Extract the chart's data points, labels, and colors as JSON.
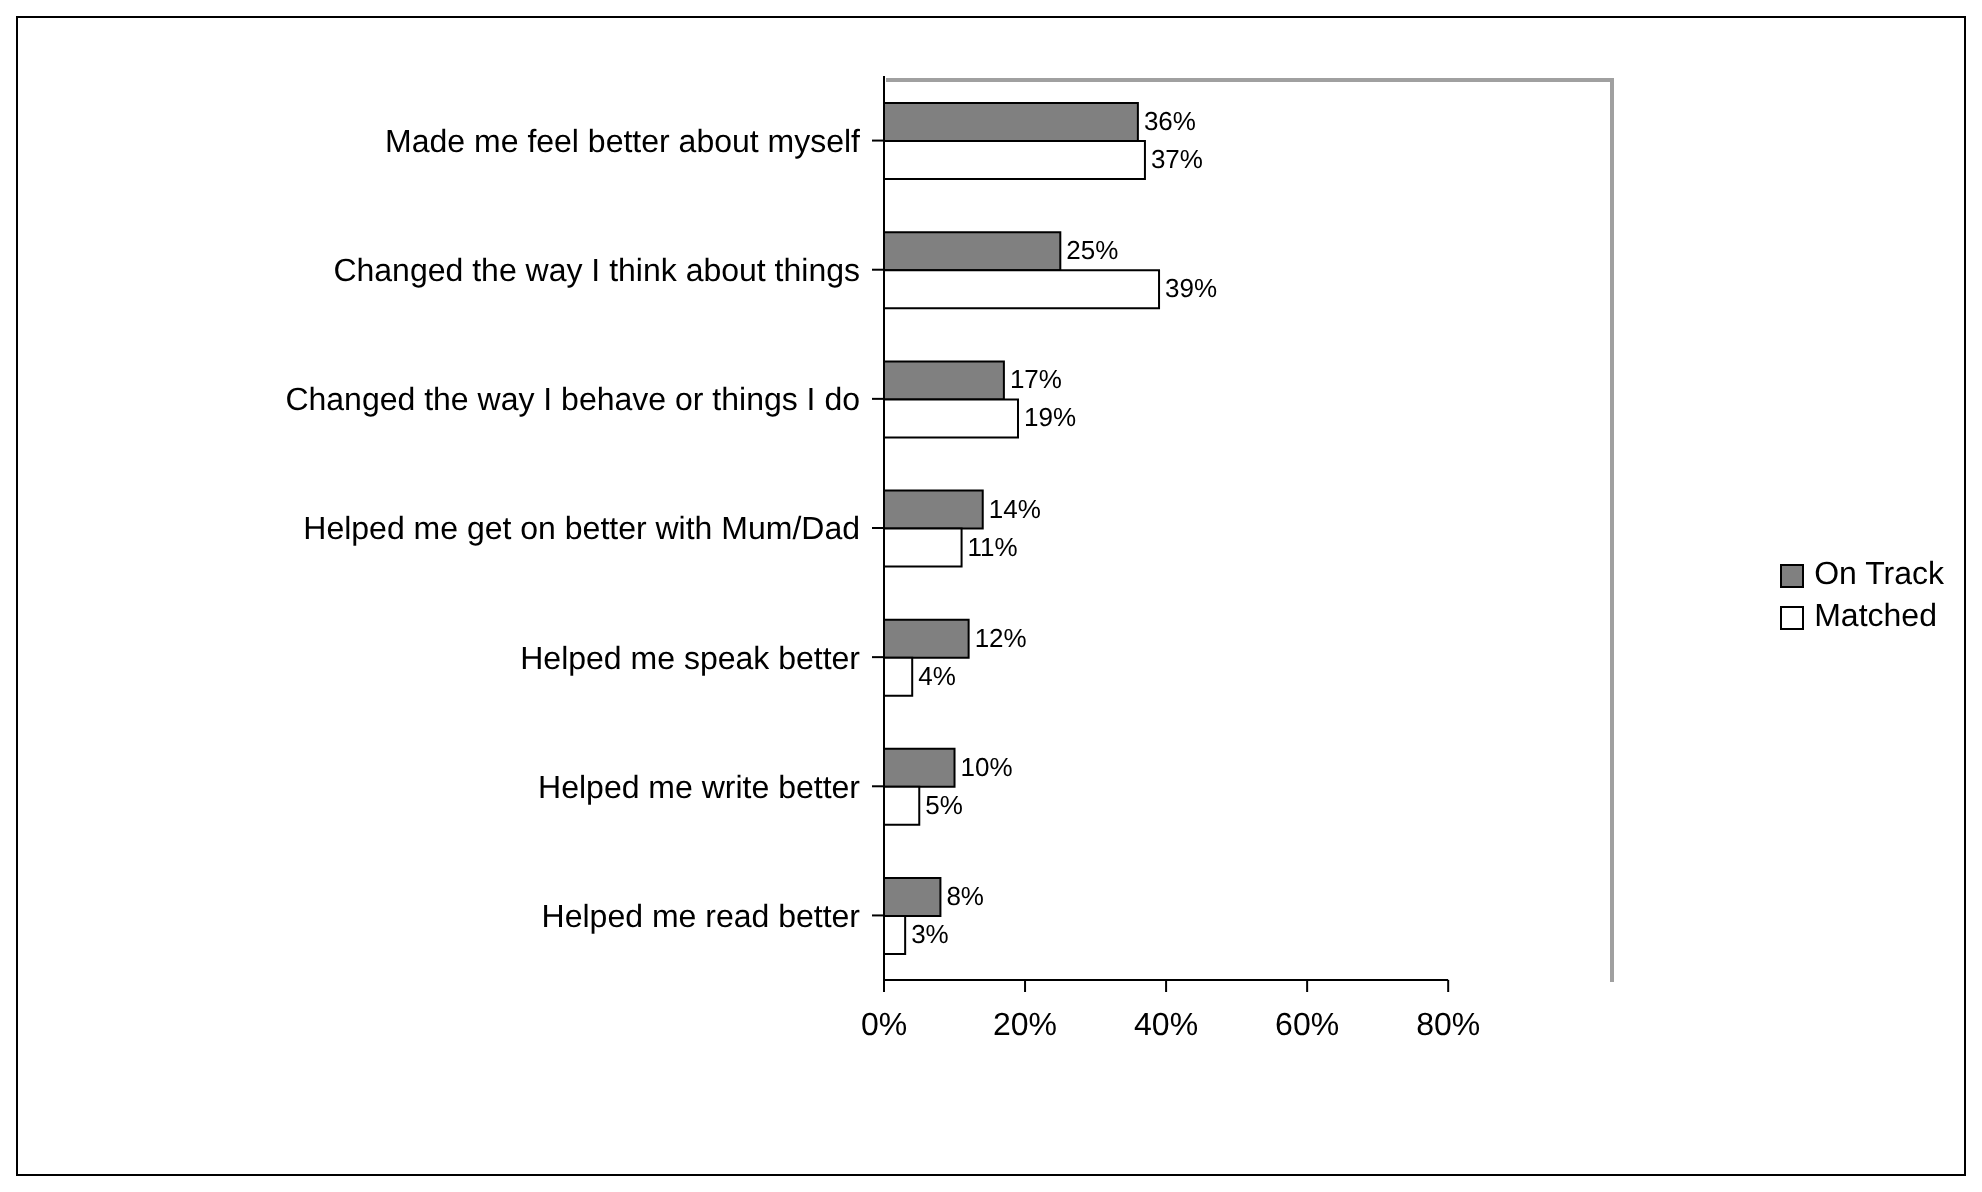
{
  "chart_data": {
    "type": "bar",
    "orientation": "horizontal",
    "categories": [
      "Made me feel better about myself",
      "Changed the way I think about things",
      "Changed the way I behave or things I do",
      "Helped me get on better with Mum/Dad",
      "Helped me speak better",
      "Helped me write better",
      "Helped me read better"
    ],
    "series": [
      {
        "name": "On Track",
        "color": "#808080",
        "values": [
          36,
          25,
          17,
          14,
          12,
          10,
          8
        ],
        "value_labels": [
          "36%",
          "25%",
          "17%",
          "14%",
          "12%",
          "10%",
          "8%"
        ]
      },
      {
        "name": "Matched",
        "color": "#ffffff",
        "values": [
          37,
          39,
          19,
          11,
          4,
          5,
          3
        ],
        "value_labels": [
          "37%",
          "39%",
          "19%",
          "11%",
          "4%",
          "5%",
          "3%"
        ]
      }
    ],
    "xlim": [
      0,
      80
    ],
    "xticks": [
      {
        "value": 0,
        "label": "0%"
      },
      {
        "value": 20,
        "label": "20%"
      },
      {
        "value": 40,
        "label": "40%"
      },
      {
        "value": 60,
        "label": "60%"
      },
      {
        "value": 80,
        "label": "80%"
      }
    ],
    "legend": "right",
    "grid": false
  }
}
